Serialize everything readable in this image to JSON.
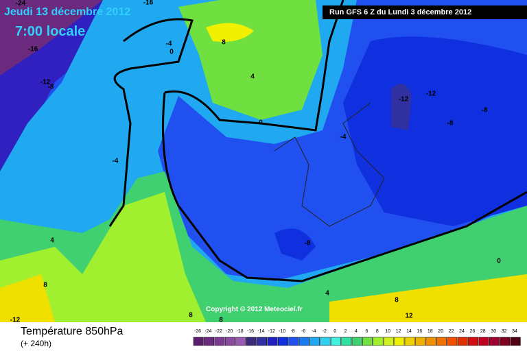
{
  "header": {
    "date": "Jeudi 13 décembre 2012",
    "time": "7:00 locale",
    "run": "Run GFS 6 Z du Lundi 3 décembre 2012"
  },
  "copyright": "Copyright © 2012 Meteociel.fr",
  "footer": {
    "title": "Température 850hPa",
    "lead": "(+ 240h)"
  },
  "contour_labels": [
    -24,
    -16,
    -16,
    -12,
    -8,
    -4,
    4,
    8,
    -12,
    8,
    8,
    4,
    8,
    12,
    0,
    -8,
    -4,
    0,
    4,
    8,
    -4,
    0,
    -12,
    -12,
    -8,
    -8
  ],
  "legend": {
    "labels": [
      -26,
      -24,
      -22,
      -20,
      -18,
      -16,
      -14,
      -12,
      -10,
      -8,
      -6,
      -4,
      -2,
      0,
      2,
      4,
      6,
      8,
      10,
      12,
      14,
      16,
      18,
      20,
      22,
      24,
      26,
      28,
      30,
      32,
      34
    ],
    "colors": [
      "#5a1e6e",
      "#6a2a7e",
      "#7a3a8e",
      "#8a4aa0",
      "#9a5ab2",
      "#3a2a7a",
      "#3030a0",
      "#2020c0",
      "#1030e0",
      "#2050f0",
      "#1a7af0",
      "#20a8f0",
      "#30d0f0",
      "#40f0e0",
      "#30e0a0",
      "#40d070",
      "#70e040",
      "#a0f030",
      "#d0f020",
      "#f0f000",
      "#f0d000",
      "#f0b000",
      "#f09000",
      "#f07000",
      "#f05000",
      "#e03000",
      "#d01010",
      "#c00020",
      "#a00030",
      "#800020",
      "#500010"
    ]
  }
}
